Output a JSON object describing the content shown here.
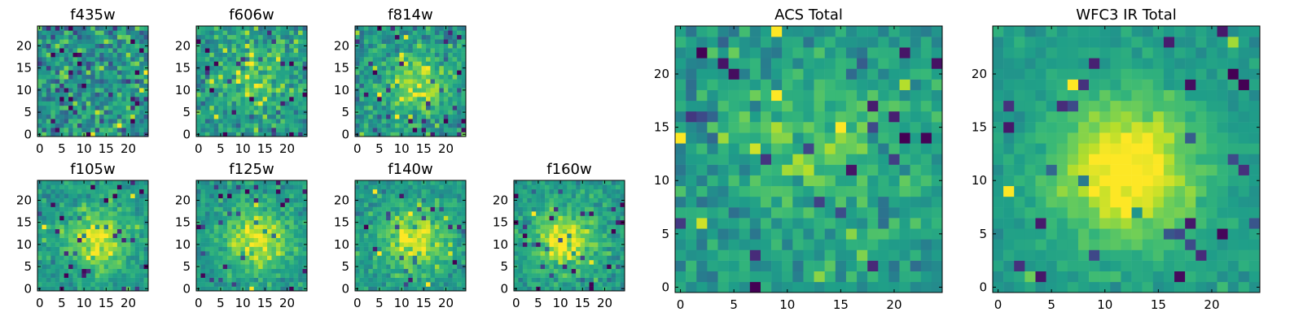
{
  "figure": {
    "colormap": "viridis",
    "colors": {
      "background": "#ffffff",
      "axes": "#000000",
      "low": "#440154",
      "mid": "#21918c",
      "high": "#fde725"
    }
  },
  "chart_data": [
    {
      "type": "heatmap",
      "title": "f435w",
      "grid_size": 25,
      "xticks": [
        0,
        5,
        10,
        15,
        20
      ],
      "yticks": [
        0,
        5,
        10,
        15,
        20
      ],
      "xlim": [
        -0.5,
        24.5
      ],
      "ylim": [
        -0.5,
        24.5
      ],
      "source_center": null,
      "source_strength": 0.0,
      "noise_level": 0.9,
      "seed": 435
    },
    {
      "type": "heatmap",
      "title": "f606w",
      "grid_size": 25,
      "xticks": [
        0,
        5,
        10,
        15,
        20
      ],
      "yticks": [
        0,
        5,
        10,
        15,
        20
      ],
      "xlim": [
        -0.5,
        24.5
      ],
      "ylim": [
        -0.5,
        24.5
      ],
      "source_center": [
        13,
        12
      ],
      "source_strength": 0.55,
      "noise_level": 0.7,
      "seed": 606
    },
    {
      "type": "heatmap",
      "title": "f814w",
      "grid_size": 25,
      "xticks": [
        0,
        5,
        10,
        15,
        20
      ],
      "yticks": [
        0,
        5,
        10,
        15,
        20
      ],
      "xlim": [
        -0.5,
        24.5
      ],
      "ylim": [
        -0.5,
        24.5
      ],
      "source_center": [
        13,
        12
      ],
      "source_strength": 0.65,
      "noise_level": 0.65,
      "seed": 814
    },
    {
      "type": "heatmap",
      "title": "f105w",
      "grid_size": 25,
      "xticks": [
        0,
        5,
        10,
        15,
        20
      ],
      "yticks": [
        0,
        5,
        10,
        15,
        20
      ],
      "xlim": [
        -0.5,
        24.5
      ],
      "ylim": [
        -0.5,
        24.5
      ],
      "source_center": [
        13,
        11
      ],
      "source_strength": 0.9,
      "noise_level": 0.45,
      "seed": 105
    },
    {
      "type": "heatmap",
      "title": "f125w",
      "grid_size": 25,
      "xticks": [
        0,
        5,
        10,
        15,
        20
      ],
      "yticks": [
        0,
        5,
        10,
        15,
        20
      ],
      "xlim": [
        -0.5,
        24.5
      ],
      "ylim": [
        -0.5,
        24.5
      ],
      "source_center": [
        13,
        11
      ],
      "source_strength": 0.9,
      "noise_level": 0.45,
      "seed": 125
    },
    {
      "type": "heatmap",
      "title": "f140w",
      "grid_size": 25,
      "xticks": [
        0,
        5,
        10,
        15,
        20
      ],
      "yticks": [
        0,
        5,
        10,
        15,
        20
      ],
      "xlim": [
        -0.5,
        24.5
      ],
      "ylim": [
        -0.5,
        24.5
      ],
      "source_center": [
        13,
        11
      ],
      "source_strength": 0.9,
      "noise_level": 0.45,
      "seed": 140
    },
    {
      "type": "heatmap",
      "title": "f160w",
      "grid_size": 25,
      "xticks": [
        0,
        5,
        10,
        15,
        20
      ],
      "yticks": [
        0,
        5,
        10,
        15,
        20
      ],
      "xlim": [
        -0.5,
        24.5
      ],
      "ylim": [
        -0.5,
        24.5
      ],
      "source_center": [
        11,
        11
      ],
      "source_strength": 0.9,
      "noise_level": 0.45,
      "seed": 160
    },
    {
      "type": "heatmap",
      "title": "ACS Total",
      "grid_size": 25,
      "xticks": [
        0,
        5,
        10,
        15,
        20
      ],
      "yticks": [
        0,
        5,
        10,
        15,
        20
      ],
      "xlim": [
        -0.5,
        24.5
      ],
      "ylim": [
        -0.5,
        24.5
      ],
      "source_center": [
        13,
        13
      ],
      "source_strength": 0.5,
      "noise_level": 0.55,
      "seed": 777
    },
    {
      "type": "heatmap",
      "title": "WFC3 IR Total",
      "grid_size": 25,
      "xticks": [
        0,
        5,
        10,
        15,
        20
      ],
      "yticks": [
        0,
        5,
        10,
        15,
        20
      ],
      "xlim": [
        -0.5,
        24.5
      ],
      "ylim": [
        -0.5,
        24.5
      ],
      "source_center": [
        12,
        11
      ],
      "source_strength": 1.1,
      "noise_level": 0.25,
      "seed": 999
    }
  ]
}
